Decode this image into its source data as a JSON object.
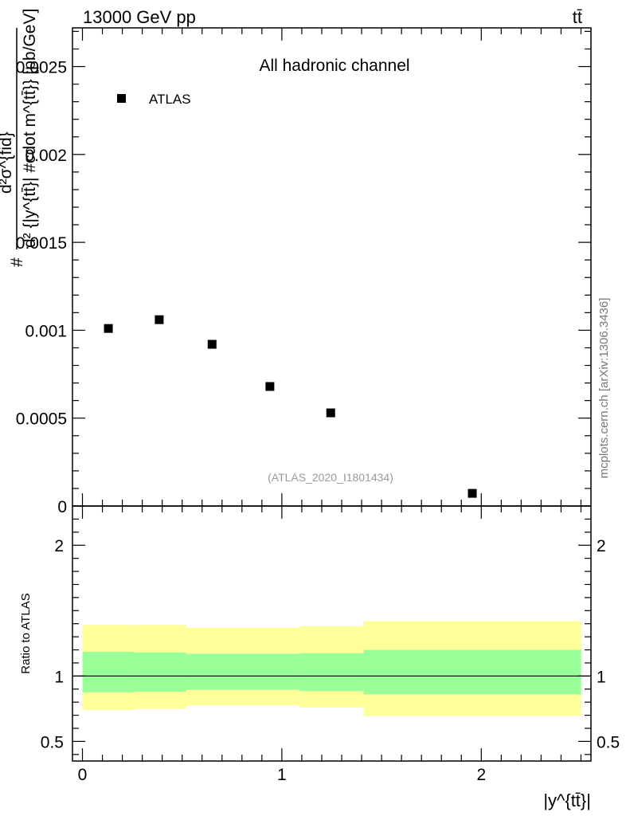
{
  "header": {
    "energy_label": "13000 GeV pp",
    "process_label": "tt̄"
  },
  "watermarks": {
    "analysis_id": "(ATLAS_2020_I1801434)",
    "site_credit": "mcplots.cern.ch [arXiv:1306.3436]"
  },
  "chart_data": [
    {
      "type": "scatter",
      "title": "All hadronic channel",
      "ylabel_numerator": "d²σ^{fid}",
      "ylabel_denominator": "d² {|y^{tt̄}| #cdot m^{tt̄}} [pb/GeV]",
      "ylabel_prefix": "#",
      "xlim": [
        -0.05,
        2.55
      ],
      "ylim": [
        0,
        0.00272
      ],
      "yticks": [
        0,
        0.0005,
        0.001,
        0.0015,
        0.002,
        0.0025
      ],
      "ytick_labels": [
        "0",
        "0.0005",
        "0.001",
        "0.0015",
        "0.002",
        "0.0025"
      ],
      "series": [
        {
          "name": "ATLAS",
          "color": "#000000",
          "x": [
            0.13,
            0.385,
            0.65,
            0.94,
            1.245,
            1.955
          ],
          "y": [
            0.00101,
            0.00106,
            0.00092,
            0.00068,
            0.00053,
            7.2e-05
          ]
        }
      ]
    },
    {
      "type": "area",
      "ylabel": "Ratio to ATLAS",
      "xlabel": "|y^{tt̄}|",
      "xlim": [
        -0.05,
        2.55
      ],
      "ylim": [
        0.35,
        2.3
      ],
      "yticks": [
        0.5,
        1,
        2
      ],
      "ytick_labels": [
        "0.5",
        "1",
        "2"
      ],
      "xticks": [
        0,
        1,
        2
      ],
      "xtick_labels": [
        "0",
        "1",
        "2"
      ],
      "reference_line": 1,
      "band_colors": {
        "outer": "#ffff99",
        "inner": "#99ff99"
      },
      "bins": [
        {
          "x_low": 0.0,
          "x_high": 0.26,
          "outer": [
            0.74,
            1.39
          ],
          "inner": [
            0.875,
            1.185
          ]
        },
        {
          "x_low": 0.26,
          "x_high": 0.52,
          "outer": [
            0.75,
            1.39
          ],
          "inner": [
            0.88,
            1.18
          ]
        },
        {
          "x_low": 0.52,
          "x_high": 1.09,
          "outer": [
            0.775,
            1.37
          ],
          "inner": [
            0.895,
            1.17
          ]
        },
        {
          "x_low": 1.09,
          "x_high": 1.41,
          "outer": [
            0.76,
            1.38
          ],
          "inner": [
            0.885,
            1.175
          ]
        },
        {
          "x_low": 1.41,
          "x_high": 2.5,
          "outer": [
            0.695,
            1.42
          ],
          "inner": [
            0.86,
            1.2
          ]
        }
      ]
    }
  ]
}
